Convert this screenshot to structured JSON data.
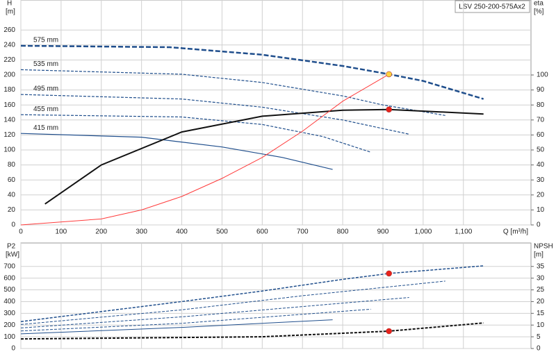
{
  "chart_data": [
    {
      "type": "line",
      "title": "LSV 250-200-575Ax2",
      "xlabel": "Q [m³/h]",
      "ylabel": "H",
      "yunit": "[m]",
      "y2label": "eta",
      "y2unit": "[%]",
      "xlim": [
        0,
        1268
      ],
      "xticks": [
        0,
        100,
        200,
        300,
        400,
        500,
        600,
        700,
        800,
        900,
        {
          "value": 1000,
          "label": "1,000"
        },
        {
          "value": 1100,
          "label": "1,100"
        }
      ],
      "xtick_labels": true,
      "ylim": [
        0,
        300
      ],
      "yticks": [
        0,
        20,
        40,
        60,
        80,
        100,
        120,
        140,
        160,
        180,
        200,
        220,
        240,
        260
      ],
      "y2lim": [
        0,
        150
      ],
      "y2ticks": [
        0,
        10,
        20,
        30,
        40,
        50,
        60,
        70,
        80,
        90,
        100
      ],
      "grid": true,
      "series": [
        {
          "name": "575 mm",
          "color": "#1f4e8c",
          "dash": true,
          "width": 2.5,
          "x": [
            0,
            370,
            600,
            800,
            915,
            1000,
            1150
          ],
          "values": [
            239,
            237,
            227,
            212,
            201,
            192,
            168
          ]
        },
        {
          "name": "535 mm",
          "color": "#1f4e8c",
          "dash": true,
          "width": 1.2,
          "x": [
            0,
            400,
            600,
            800,
            900,
            1055
          ],
          "values": [
            207,
            201,
            190,
            172,
            160,
            146
          ]
        },
        {
          "name": "495 mm",
          "color": "#1f4e8c",
          "dash": true,
          "width": 1.2,
          "x": [
            0,
            400,
            600,
            800,
            965
          ],
          "values": [
            174,
            168,
            157,
            140,
            121
          ]
        },
        {
          "name": "455 mm",
          "color": "#1f4e8c",
          "dash": true,
          "width": 1.2,
          "x": [
            0,
            400,
            600,
            750,
            870
          ],
          "values": [
            147,
            144,
            134,
            118,
            97
          ]
        },
        {
          "name": "415 mm",
          "color": "#1f4e8c",
          "dash": false,
          "width": 1.2,
          "x": [
            0,
            300,
            500,
            650,
            775
          ],
          "values": [
            122,
            117,
            104,
            90,
            74
          ]
        },
        {
          "color": "#111111",
          "dash": false,
          "width": 2,
          "axis": "y2",
          "x": [
            60,
            200,
            400,
            600,
            800,
            915,
            1150
          ],
          "values": [
            14,
            40,
            62,
            72.5,
            76.5,
            77,
            74
          ]
        },
        {
          "color": "#ff3b3b",
          "dash": false,
          "width": 1,
          "x": [
            0,
            200,
            300,
            400,
            500,
            600,
            700,
            800,
            915
          ],
          "values": [
            0,
            8,
            20,
            38,
            62,
            90,
            125,
            165,
            201
          ]
        },
        {
          "color": "#ffd23f",
          "style": "point",
          "x": [
            915
          ],
          "values": [
            201
          ]
        },
        {
          "color": "#e8221b",
          "style": "point",
          "axis": "y2",
          "x": [
            915
          ],
          "values": [
            77
          ]
        }
      ]
    },
    {
      "type": "line",
      "ylabel": "P2",
      "yunit": "[kW]",
      "y2label": "NPSH",
      "y2unit": "[m]",
      "xlim": [
        0,
        1268
      ],
      "xticks": [
        0,
        100,
        200,
        300,
        400,
        500,
        600,
        700,
        800,
        900,
        1000,
        1100
      ],
      "xtick_labels": false,
      "ylim": [
        0,
        900
      ],
      "yticks": [
        0,
        100,
        200,
        300,
        400,
        500,
        600,
        700
      ],
      "y2lim": [
        0,
        45
      ],
      "y2ticks": [
        0,
        5,
        10,
        15,
        20,
        25,
        30,
        35
      ],
      "grid": true,
      "series": [
        {
          "color": "#1f4e8c",
          "dash": true,
          "width": 1.5,
          "x": [
            0,
            400,
            600,
            800,
            915,
            1150
          ],
          "values": [
            230,
            400,
            490,
            590,
            640,
            705
          ]
        },
        {
          "color": "#1f4e8c",
          "dash": true,
          "width": 1,
          "x": [
            0,
            400,
            700,
            1055
          ],
          "values": [
            205,
            330,
            450,
            575
          ]
        },
        {
          "color": "#1f4e8c",
          "dash": true,
          "width": 1,
          "x": [
            0,
            400,
            965
          ],
          "values": [
            175,
            270,
            435
          ]
        },
        {
          "color": "#1f4e8c",
          "dash": true,
          "width": 1,
          "x": [
            0,
            400,
            870
          ],
          "values": [
            150,
            215,
            335
          ]
        },
        {
          "color": "#1f4e8c",
          "dash": false,
          "width": 1,
          "x": [
            0,
            400,
            775
          ],
          "values": [
            125,
            180,
            245
          ]
        },
        {
          "color": "#111111",
          "dash": true,
          "width": 2,
          "axis": "y2",
          "x": [
            0,
            600,
            800,
            915,
            1150
          ],
          "values": [
            4.1,
            5,
            6.5,
            7.4,
            10.9
          ]
        },
        {
          "color": "#e8221b",
          "style": "point",
          "x": [
            915
          ],
          "values": [
            640
          ]
        },
        {
          "color": "#e8221b",
          "style": "point",
          "axis": "y2",
          "x": [
            915
          ],
          "values": [
            7.4
          ]
        }
      ]
    }
  ]
}
